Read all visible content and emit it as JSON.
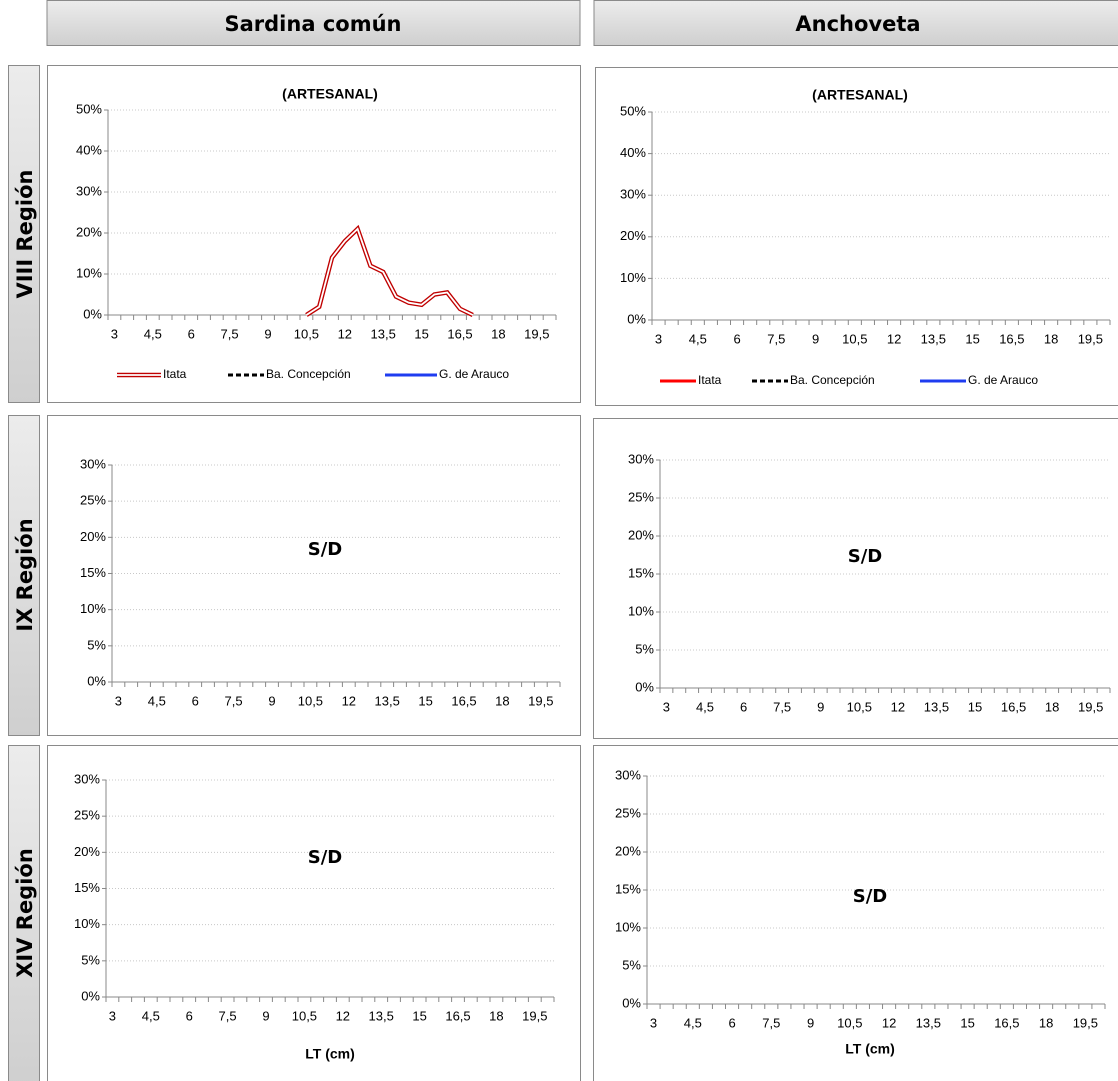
{
  "columns": [
    "Sardina común",
    "Anchoveta"
  ],
  "rows": [
    "VIII Región",
    "IX Región",
    "XIV Región"
  ],
  "chart_data": [
    {
      "type": "line",
      "title": "(ARTESANAL)",
      "categories": [
        "3",
        null,
        null,
        "4,5",
        null,
        null,
        "6",
        null,
        null,
        "7,5",
        null,
        null,
        "9",
        null,
        null,
        "10,5",
        null,
        null,
        "12",
        null,
        null,
        "13,5",
        null,
        null,
        "15",
        null,
        null,
        "16,5",
        null,
        null,
        "18",
        null,
        null,
        "19,5",
        null
      ],
      "series": [
        {
          "name": "Itata",
          "color": "#c00000",
          "style": "double",
          "values": [
            null,
            null,
            null,
            null,
            null,
            null,
            null,
            null,
            null,
            null,
            null,
            null,
            null,
            null,
            null,
            0,
            2,
            14,
            18,
            21,
            12,
            10.5,
            4.5,
            3,
            2.5,
            5,
            5.5,
            1.5,
            0,
            null,
            null,
            null,
            null,
            null,
            null
          ]
        },
        {
          "name": "Ba. Concepción",
          "color": "#000000",
          "dash": true
        },
        {
          "name": "G. de Arauco",
          "color": "#1f3cf0"
        }
      ],
      "ylim": [
        0,
        50
      ],
      "yticks": [
        {
          "value": 0,
          "label": "0%"
        },
        {
          "value": 10,
          "label": "10%"
        },
        {
          "value": 20,
          "label": "20%"
        },
        {
          "value": 30,
          "label": "30%"
        },
        {
          "value": 40,
          "label": "40%"
        },
        {
          "value": 50,
          "label": "50%"
        }
      ],
      "grid": true
    },
    {
      "type": "line",
      "title": "(ARTESANAL)",
      "categories": [
        "3",
        null,
        null,
        "4,5",
        null,
        null,
        "6",
        null,
        null,
        "7,5",
        null,
        null,
        "9",
        null,
        null,
        "10,5",
        null,
        null,
        "12",
        null,
        null,
        "13,5",
        null,
        null,
        "15",
        null,
        null,
        "16,5",
        null,
        null,
        "18",
        null,
        null,
        "19,5",
        null
      ],
      "series": [
        {
          "name": "Itata",
          "color": "#ff0000"
        },
        {
          "name": "Ba. Concepción",
          "color": "#000000",
          "dash": true
        },
        {
          "name": "G. de Arauco",
          "color": "#1f3cf0"
        }
      ],
      "ylim": [
        0,
        50
      ],
      "yticks": [
        {
          "value": 0,
          "label": "0%"
        },
        {
          "value": 10,
          "label": "10%"
        },
        {
          "value": 20,
          "label": "20%"
        },
        {
          "value": 30,
          "label": "30%"
        },
        {
          "value": 40,
          "label": "40%"
        },
        {
          "value": 50,
          "label": "50%"
        }
      ],
      "grid": true
    },
    {
      "type": "line",
      "annotation": "S/D",
      "categories": [
        "3",
        null,
        null,
        "4,5",
        null,
        null,
        "6",
        null,
        null,
        "7,5",
        null,
        null,
        "9",
        null,
        null,
        "10,5",
        null,
        null,
        "12",
        null,
        null,
        "13,5",
        null,
        null,
        "15",
        null,
        null,
        "16,5",
        null,
        null,
        "18",
        null,
        null,
        "19,5",
        null
      ],
      "ylim": [
        0,
        30
      ],
      "yticks": [
        {
          "value": 0,
          "label": "0%"
        },
        {
          "value": 5,
          "label": "5%"
        },
        {
          "value": 10,
          "label": "10%"
        },
        {
          "value": 15,
          "label": "15%"
        },
        {
          "value": 20,
          "label": "20%"
        },
        {
          "value": 25,
          "label": "25%"
        },
        {
          "value": 30,
          "label": "30%"
        }
      ],
      "grid": true
    },
    {
      "type": "line",
      "annotation": "S/D",
      "categories": [
        "3",
        null,
        null,
        "4,5",
        null,
        null,
        "6",
        null,
        null,
        "7,5",
        null,
        null,
        "9",
        null,
        null,
        "10,5",
        null,
        null,
        "12",
        null,
        null,
        "13,5",
        null,
        null,
        "15",
        null,
        null,
        "16,5",
        null,
        null,
        "18",
        null,
        null,
        "19,5",
        null
      ],
      "ylim": [
        0,
        30
      ],
      "yticks": [
        {
          "value": 0,
          "label": "0%"
        },
        {
          "value": 5,
          "label": "5%"
        },
        {
          "value": 10,
          "label": "10%"
        },
        {
          "value": 15,
          "label": "15%"
        },
        {
          "value": 20,
          "label": "20%"
        },
        {
          "value": 25,
          "label": "25%"
        },
        {
          "value": 30,
          "label": "30%"
        }
      ],
      "grid": true
    },
    {
      "type": "line",
      "annotation": "S/D",
      "xlabel": "LT (cm)",
      "categories": [
        "3",
        null,
        null,
        "4,5",
        null,
        null,
        "6",
        null,
        null,
        "7,5",
        null,
        null,
        "9",
        null,
        null,
        "10,5",
        null,
        null,
        "12",
        null,
        null,
        "13,5",
        null,
        null,
        "15",
        null,
        null,
        "16,5",
        null,
        null,
        "18",
        null,
        null,
        "19,5",
        null
      ],
      "ylim": [
        0,
        30
      ],
      "yticks": [
        {
          "value": 0,
          "label": "0%"
        },
        {
          "value": 5,
          "label": "5%"
        },
        {
          "value": 10,
          "label": "10%"
        },
        {
          "value": 15,
          "label": "15%"
        },
        {
          "value": 20,
          "label": "20%"
        },
        {
          "value": 25,
          "label": "25%"
        },
        {
          "value": 30,
          "label": "30%"
        }
      ],
      "grid": true
    },
    {
      "type": "line",
      "annotation": "S/D",
      "xlabel": "LT (cm)",
      "categories": [
        "3",
        null,
        null,
        "4,5",
        null,
        null,
        "6",
        null,
        null,
        "7,5",
        null,
        null,
        "9",
        null,
        null,
        "10,5",
        null,
        null,
        "12",
        null,
        null,
        "13,5",
        null,
        null,
        "15",
        null,
        null,
        "16,5",
        null,
        null,
        "18",
        null,
        null,
        "19,5",
        null
      ],
      "ylim": [
        0,
        30
      ],
      "yticks": [
        {
          "value": 0,
          "label": "0%"
        },
        {
          "value": 5,
          "label": "5%"
        },
        {
          "value": 10,
          "label": "10%"
        },
        {
          "value": 15,
          "label": "15%"
        },
        {
          "value": 20,
          "label": "20%"
        },
        {
          "value": 25,
          "label": "25%"
        },
        {
          "value": 30,
          "label": "30%"
        }
      ],
      "grid": true
    }
  ]
}
